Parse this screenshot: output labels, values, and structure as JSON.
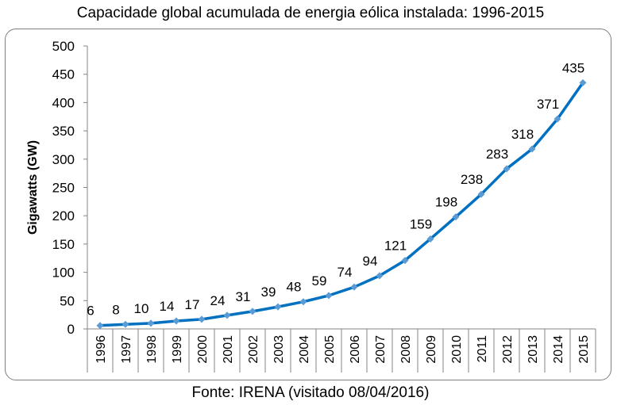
{
  "chart_data": {
    "type": "line",
    "title": "Capacidade global acumulada de energia eólica instalada: 1996-2015",
    "ylabel": "Gigawatts (GW)",
    "xlabel": "",
    "ylim": [
      0,
      500
    ],
    "yticks": [
      0,
      50,
      100,
      150,
      200,
      250,
      300,
      350,
      400,
      450,
      500
    ],
    "grid": false,
    "legend": "none",
    "x": [
      "1996",
      "1997",
      "1998",
      "1999",
      "2000",
      "2001",
      "2002",
      "2003",
      "2004",
      "2005",
      "2006",
      "2007",
      "2008",
      "2009",
      "2010",
      "2011",
      "2012",
      "2013",
      "2014",
      "2015"
    ],
    "series": [
      {
        "values": [
          6,
          8,
          10,
          14,
          17,
          24,
          31,
          39,
          48,
          59,
          74,
          94,
          121,
          159,
          198,
          238,
          283,
          318,
          371,
          435
        ],
        "labels": [
          "6",
          "8",
          "10",
          "14",
          "17",
          "24",
          "31",
          "39",
          "48",
          "59",
          "74",
          "94",
          "121",
          "159",
          "198",
          "238",
          "283",
          "318",
          "371",
          "435"
        ],
        "color": "#0070c0",
        "marker_color": "#5b9bd5"
      }
    ],
    "source": "Fonte: IRENA (visitado 08/04/2016)"
  }
}
